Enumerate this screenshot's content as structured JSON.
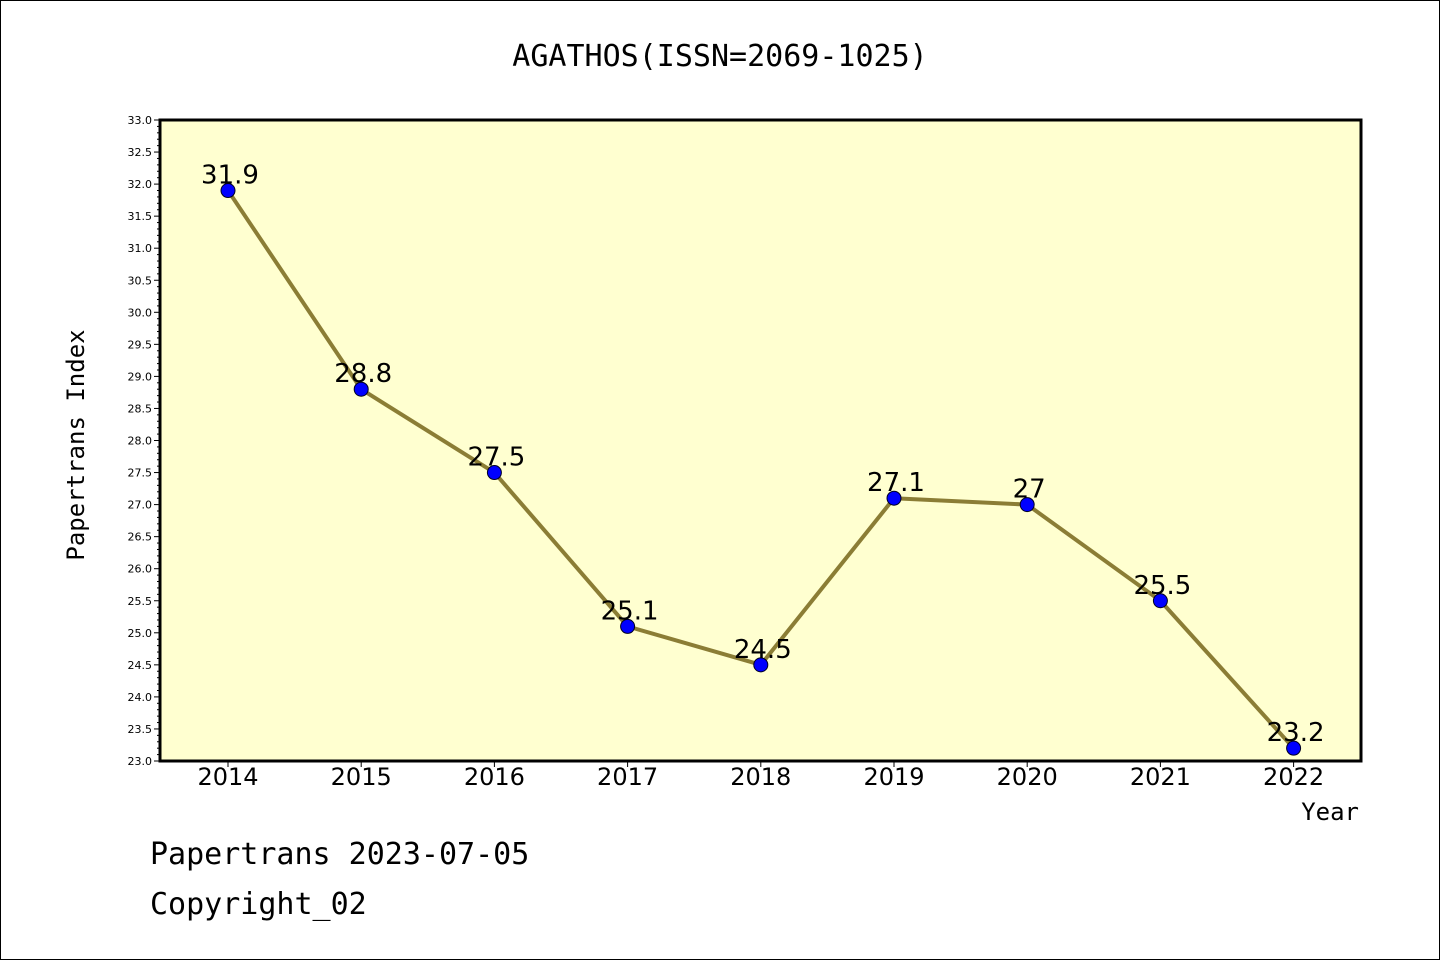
{
  "chart_data": {
    "type": "line",
    "title": "AGATHOS(ISSN=2069-1025)",
    "xlabel": "Year",
    "ylabel": "Papertrans Index",
    "categories": [
      "2014",
      "2015",
      "2016",
      "2017",
      "2018",
      "2019",
      "2020",
      "2021",
      "2022"
    ],
    "series": [
      {
        "values": [
          31.9,
          28.8,
          27.5,
          25.1,
          24.5,
          27.1,
          27.0,
          25.5,
          23.2
        ],
        "labels": [
          "31.9",
          "28.8",
          "27.5",
          "25.1",
          "24.5",
          "27.1",
          "27",
          "25.5",
          "23.2"
        ]
      }
    ],
    "ylim": [
      23.0,
      33.0
    ],
    "ytick_step": 0.5,
    "grid": false,
    "legend": "none",
    "colors": {
      "plot_background": "#ffffd0",
      "line": "#8b7d35",
      "marker": "#0000ff"
    }
  },
  "footer": {
    "line1": "Papertrans 2023-07-05",
    "line2": "Copyright_02"
  }
}
